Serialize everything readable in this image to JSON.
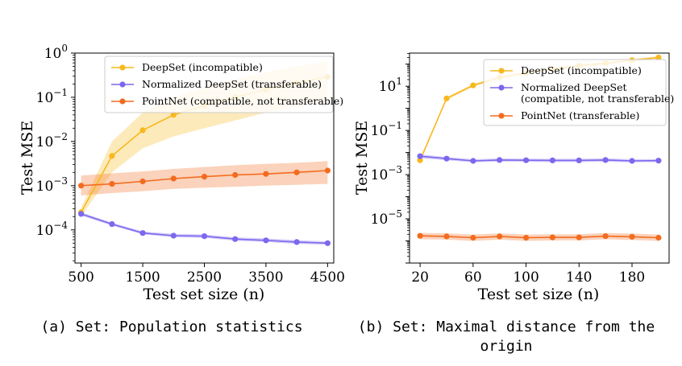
{
  "chart_data": [
    {
      "type": "line",
      "yscale": "log",
      "xlabel": "Test set size (n)",
      "ylabel": "Test MSE",
      "xlim": [
        400,
        4600
      ],
      "ylim_exp": [
        -4.75,
        0
      ],
      "xticks": [
        500,
        1500,
        2500,
        3500,
        4500
      ],
      "xtick_labels": [
        "500",
        "1500",
        "2500",
        "3500",
        "4500"
      ],
      "yticks_exp": [
        -4,
        -3,
        -2,
        -1,
        0
      ],
      "ytick_labels": [
        "10",
        "10",
        "10",
        "10",
        "10"
      ],
      "ytick_exponents": [
        "−4",
        "−3",
        "−2",
        "−1",
        "0"
      ],
      "legend_position": "top-right",
      "caption": "(a) Set: Population statistics",
      "x": [
        500,
        1000,
        1500,
        2000,
        2500,
        3000,
        3500,
        4000,
        4500
      ],
      "series": [
        {
          "name": "DeepSet (incompatible)",
          "color": "#f8b81e",
          "values": [
            0.00025,
            0.0047,
            0.018,
            0.04,
            0.065,
            0.1,
            0.15,
            0.21,
            0.29
          ],
          "lower": [
            0.0002,
            0.002,
            0.007,
            0.013,
            0.02,
            0.03,
            0.045,
            0.06,
            0.08
          ],
          "upper": [
            0.00032,
            0.01,
            0.045,
            0.1,
            0.17,
            0.26,
            0.37,
            0.5,
            0.65
          ]
        },
        {
          "name": "Normalized DeepSet (transferable)",
          "color": "#7b68ee",
          "values": [
            0.00023,
            0.000135,
            8.5e-05,
            7.4e-05,
            7.2e-05,
            6.2e-05,
            5.8e-05,
            5.3e-05,
            5e-05
          ],
          "lower": [
            0.00021,
            0.000125,
            7.9e-05,
            6.8e-05,
            6.6e-05,
            5.7e-05,
            5.3e-05,
            4.8e-05,
            4.6e-05
          ],
          "upper": [
            0.00025,
            0.000146,
            9.2e-05,
            8.1e-05,
            7.9e-05,
            6.8e-05,
            6.4e-05,
            5.9e-05,
            5.5e-05
          ]
        },
        {
          "name": "PointNet (compatible, not transferable)",
          "color": "#f36b1f",
          "values": [
            0.001,
            0.0011,
            0.00125,
            0.00145,
            0.0016,
            0.00175,
            0.00185,
            0.002,
            0.0022
          ],
          "lower": [
            0.0006,
            0.00068,
            0.00075,
            0.00085,
            0.0009,
            0.00095,
            0.001,
            0.00105,
            0.0011
          ],
          "upper": [
            0.0017,
            0.0019,
            0.0021,
            0.0024,
            0.00265,
            0.0029,
            0.0031,
            0.0033,
            0.0036
          ]
        }
      ]
    },
    {
      "type": "line",
      "yscale": "log",
      "xlabel": "Test set size (n)",
      "ylabel": "Test MSE",
      "xlim": [
        12,
        208
      ],
      "ylim_exp": [
        -7.0,
        2.5
      ],
      "xticks": [
        20,
        60,
        100,
        140,
        180
      ],
      "xtick_labels": [
        "20",
        "60",
        "100",
        "140",
        "180"
      ],
      "yticks_exp": [
        -5,
        -3,
        -1,
        1
      ],
      "ytick_labels": [
        "10",
        "10",
        "10",
        "10"
      ],
      "ytick_exponents": [
        "−5",
        "−3",
        "−1",
        "1"
      ],
      "legend_position": "top-right",
      "caption_lines": [
        "(b) Set: Maximal distance from the",
        "origin"
      ],
      "x": [
        20,
        40,
        60,
        80,
        100,
        120,
        140,
        160,
        180,
        200
      ],
      "series": [
        {
          "name": "DeepSet (incompatible)",
          "color": "#f8b81e",
          "values": [
            0.0045,
            2.8,
            11,
            25,
            40,
            60,
            85,
            110,
            150,
            200
          ],
          "lower": [
            0.0038,
            2.4,
            9.5,
            21,
            34,
            51,
            72,
            94,
            128,
            170
          ],
          "upper": [
            0.0053,
            3.3,
            12.8,
            29,
            46,
            69,
            98,
            127,
            173,
            230
          ]
        },
        {
          "name": "Normalized DeepSet\n(compatible, not transferable)",
          "color": "#7b68ee",
          "values": [
            0.0068,
            0.0053,
            0.0042,
            0.0046,
            0.0045,
            0.0044,
            0.0044,
            0.0046,
            0.0042,
            0.0043
          ],
          "lower": [
            0.0055,
            0.0045,
            0.0036,
            0.0039,
            0.0038,
            0.0037,
            0.0037,
            0.0038,
            0.0036,
            0.0037
          ],
          "upper": [
            0.0083,
            0.0063,
            0.005,
            0.0054,
            0.0053,
            0.0052,
            0.0052,
            0.0055,
            0.005,
            0.0051
          ]
        },
        {
          "name": "PointNet (transferable)",
          "color": "#f36b1f",
          "values": [
            1.7e-06,
            1.6e-06,
            1.4e-06,
            1.6e-06,
            1.4e-06,
            1.45e-06,
            1.45e-06,
            1.65e-06,
            1.55e-06,
            1.4e-06
          ],
          "lower": [
            1.2e-06,
            1.15e-06,
            1e-06,
            1.15e-06,
            1e-06,
            1.05e-06,
            1.05e-06,
            1.2e-06,
            1.1e-06,
            1e-06
          ],
          "upper": [
            2.3e-06,
            2.2e-06,
            1.95e-06,
            2.2e-06,
            1.95e-06,
            2e-06,
            2e-06,
            2.3e-06,
            2.15e-06,
            1.95e-06
          ]
        }
      ]
    }
  ]
}
